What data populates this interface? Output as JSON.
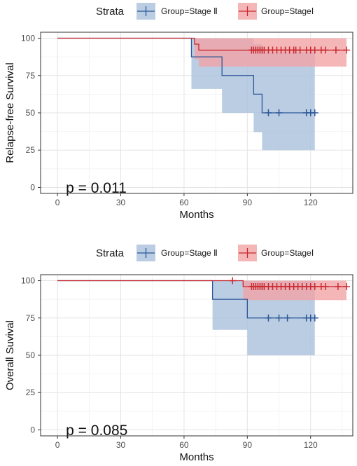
{
  "chart_data": [
    {
      "type": "line",
      "subtype": "kaplan-meier",
      "title": "",
      "xlabel": "Months",
      "ylabel": "Relapse-free Survival",
      "xlim": [
        -8,
        140
      ],
      "ylim": [
        -4,
        104
      ],
      "x_ticks": [
        0,
        30,
        60,
        90,
        120
      ],
      "y_ticks": [
        0,
        25,
        50,
        75,
        100
      ],
      "grid": true,
      "legend": {
        "title": "Strata",
        "placement": "top",
        "entries": [
          "Group=Stage Ⅱ",
          "Group=StageⅠ"
        ]
      },
      "annotation": "p = 0.011",
      "series": [
        {
          "name": "Group=Stage Ⅱ",
          "color": "#2b5797",
          "fill": "#a9c1dc",
          "steps": [
            [
              0,
              100
            ],
            [
              63.5,
              87.5
            ],
            [
              71,
              87.5
            ],
            [
              78,
              75
            ],
            [
              86,
              75
            ],
            [
              93,
              62.5
            ],
            [
              95,
              62.5
            ],
            [
              97,
              50
            ],
            [
              122,
              50
            ]
          ],
          "ci_steps": [
            [
              63.5,
              66,
              100
            ],
            [
              78,
              50,
              100
            ],
            [
              93,
              37,
              96
            ],
            [
              97,
              25,
              91
            ],
            [
              122,
              25,
              91
            ]
          ],
          "censors": [
            100,
            105,
            118,
            120,
            122
          ]
        },
        {
          "name": "Group=StageⅠ",
          "color": "#c8282e",
          "fill": "#f3a4a6",
          "steps": [
            [
              0,
              100
            ],
            [
              65,
              96
            ],
            [
              67,
              92
            ],
            [
              137,
              92
            ]
          ],
          "ci_steps": [
            [
              65,
              86,
              100
            ],
            [
              67,
              81,
              100
            ],
            [
              137,
              81,
              100
            ]
          ],
          "censors": [
            92,
            93,
            94,
            95,
            96,
            97,
            98,
            100,
            102,
            104,
            106,
            108,
            110,
            112,
            113,
            115,
            118,
            120,
            122,
            125,
            127,
            132,
            137
          ]
        }
      ]
    },
    {
      "type": "line",
      "subtype": "kaplan-meier",
      "title": "",
      "xlabel": "Months",
      "ylabel": "Overall Suvival",
      "xlim": [
        -8,
        140
      ],
      "ylim": [
        -4,
        104
      ],
      "x_ticks": [
        0,
        30,
        60,
        90,
        120
      ],
      "y_ticks": [
        0,
        25,
        50,
        75,
        100
      ],
      "grid": true,
      "legend": {
        "title": "Strata",
        "placement": "top",
        "entries": [
          "Group=Stage Ⅱ",
          "Group=StageⅠ"
        ]
      },
      "annotation": "p = 0.085",
      "series": [
        {
          "name": "Group=Stage Ⅱ",
          "color": "#2b5797",
          "fill": "#a9c1dc",
          "steps": [
            [
              0,
              100
            ],
            [
              73.5,
              87.5
            ],
            [
              90,
              75
            ],
            [
              122,
              75
            ]
          ],
          "ci_steps": [
            [
              73.5,
              67,
              100
            ],
            [
              90,
              50,
              100
            ],
            [
              122,
              50,
              100
            ]
          ],
          "censors": [
            100,
            105,
            109,
            118,
            120,
            122
          ]
        },
        {
          "name": "Group=StageⅠ",
          "color": "#c8282e",
          "fill": "#f3a4a6",
          "steps": [
            [
              0,
              100
            ],
            [
              88,
              96
            ],
            [
              137,
              96
            ]
          ],
          "ci_steps": [
            [
              88,
              87,
              100
            ],
            [
              137,
              87,
              100
            ]
          ],
          "censors": [
            83,
            92,
            93,
            94,
            95,
            96,
            97,
            98,
            100,
            102,
            104,
            106,
            108,
            110,
            112,
            114,
            116,
            118,
            120,
            122,
            125,
            127,
            133,
            137
          ]
        }
      ]
    }
  ]
}
